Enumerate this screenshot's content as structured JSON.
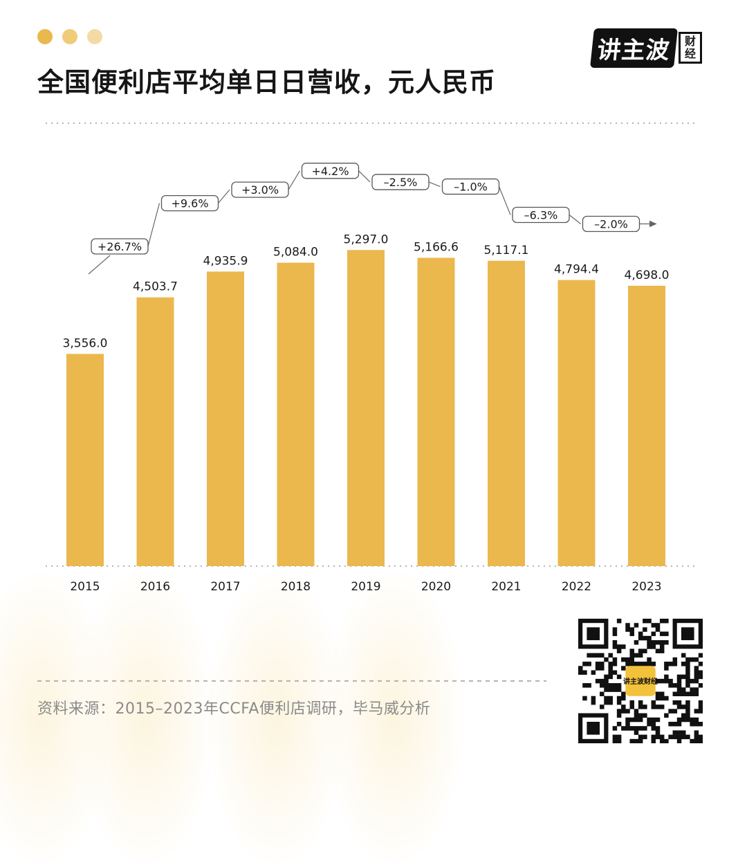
{
  "header": {
    "title": "全国便利店平均单日日营收，元人民币",
    "dots": [
      "#E9B84E",
      "#F0CB7A",
      "#F4DBA6"
    ]
  },
  "logo": {
    "main": "讲主波",
    "sub": "财经"
  },
  "colors": {
    "bar": "#EBB84E",
    "axis_text": "#1a1a1a",
    "pill_border": "#555555",
    "guide": "#9a9a9a",
    "qr_center": "#F2C23C"
  },
  "footer": {
    "source": "资料来源：2015–2023年CCFA便利店调研，毕马威分析"
  },
  "qr": {
    "center_label": "讲主波财经"
  },
  "chart_data": {
    "type": "bar",
    "title": "全国便利店平均单日日营收，元人民币",
    "categories": [
      "2015",
      "2016",
      "2017",
      "2018",
      "2019",
      "2020",
      "2021",
      "2022",
      "2023"
    ],
    "values": [
      3556.0,
      4503.7,
      4935.9,
      5084.0,
      5297.0,
      5166.6,
      5117.1,
      4794.4,
      4698.0
    ],
    "value_labels": [
      "3,556.0",
      "4,503.7",
      "4,935.9",
      "5,084.0",
      "5,297.0",
      "5,166.6",
      "5,117.1",
      "4,794.4",
      "4,698.0"
    ],
    "growth_labels": [
      "+26.7%",
      "+9.6%",
      "+3.0%",
      "+4.2%",
      "–2.5%",
      "–1.0%",
      "–6.3%",
      "–2.0%"
    ],
    "growth_values": [
      26.7,
      9.6,
      3.0,
      4.2,
      -2.5,
      -1.0,
      -6.3,
      -2.0
    ],
    "ylim": [
      0,
      5300
    ],
    "grid": false,
    "xlabel": "",
    "ylabel": ""
  }
}
